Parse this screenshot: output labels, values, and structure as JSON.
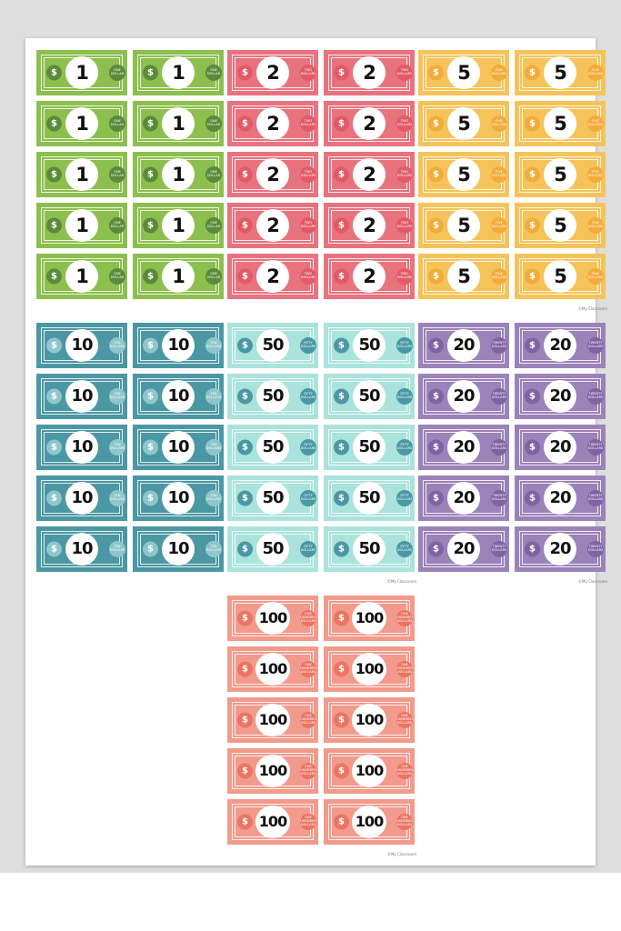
{
  "sheets": [
    {
      "denomination": "1",
      "words": "ONE DOLLAR",
      "currency_symbol": "$",
      "color": "#8cbf4e",
      "accent": "#5b8a3a",
      "count": 10
    },
    {
      "denomination": "2",
      "words": "TWO DOLLARS",
      "currency_symbol": "$",
      "color": "#e8727e",
      "accent": "#e25a68",
      "count": 10
    },
    {
      "denomination": "5",
      "words": "FIVE DOLLARS",
      "currency_symbol": "$",
      "color": "#f6c35a",
      "accent": "#f2ac3a",
      "count": 10,
      "copyright": "©My Classroom"
    },
    {
      "denomination": "10",
      "words": "TEN DOLLARS",
      "currency_symbol": "$",
      "color": "#4b97a3",
      "accent": "#8ec6cc",
      "count": 10
    },
    {
      "denomination": "50",
      "words": "FIFTY DOLLARS",
      "currency_symbol": "$",
      "color": "#aae3dc",
      "accent": "#4a98a4",
      "count": 10,
      "copyright": "©My Classroom"
    },
    {
      "denomination": "20",
      "words": "TWENTY DOLLARS",
      "currency_symbol": "$",
      "color": "#9b82b9",
      "accent": "#7e64a3",
      "count": 10,
      "copyright": "©My Classroom"
    },
    {
      "denomination": "100",
      "words": "ONE HUNDRED DOLLARS",
      "currency_symbol": "$",
      "color": "#f29a8b",
      "accent": "#eb7463",
      "count": 10,
      "copyright": "©My Classroom"
    }
  ]
}
